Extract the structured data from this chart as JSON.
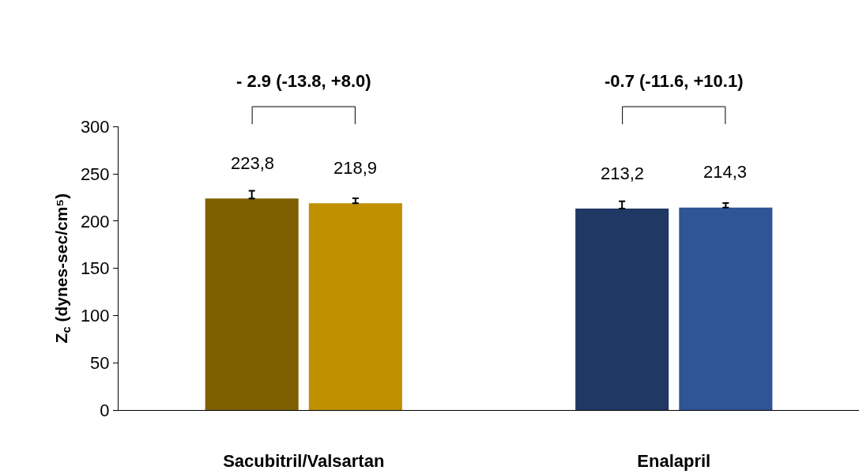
{
  "chart_data": {
    "type": "bar",
    "ylabel": "Z$_{c}$ (dynes-sec/cm⁵)",
    "categories": [
      "Sacubitril/Valsartan",
      "Enalapril"
    ],
    "series": [
      {
        "colors": [
          "#7f6000",
          "#203864"
        ],
        "values": [
          223.8,
          213.2
        ],
        "value_labels": [
          "223,8",
          "213,2"
        ],
        "errors": [
          [
            223.8,
            232
          ],
          [
            213.2,
            221
          ]
        ]
      },
      {
        "colors": [
          "#bf9000",
          "#2f5597"
        ],
        "values": [
          218.9,
          214.3
        ],
        "value_labels": [
          "218,9",
          "214,3"
        ],
        "errors": [
          [
            218.9,
            224
          ],
          [
            214.3,
            219
          ]
        ]
      }
    ],
    "ylim": [
      0,
      300
    ],
    "yticks": [
      0,
      50,
      100,
      150,
      200,
      250,
      300
    ],
    "annotations": [
      "- 2.9 (-13.8, +8.0)",
      "-0.7 (-11.6, +10.1)"
    ]
  }
}
